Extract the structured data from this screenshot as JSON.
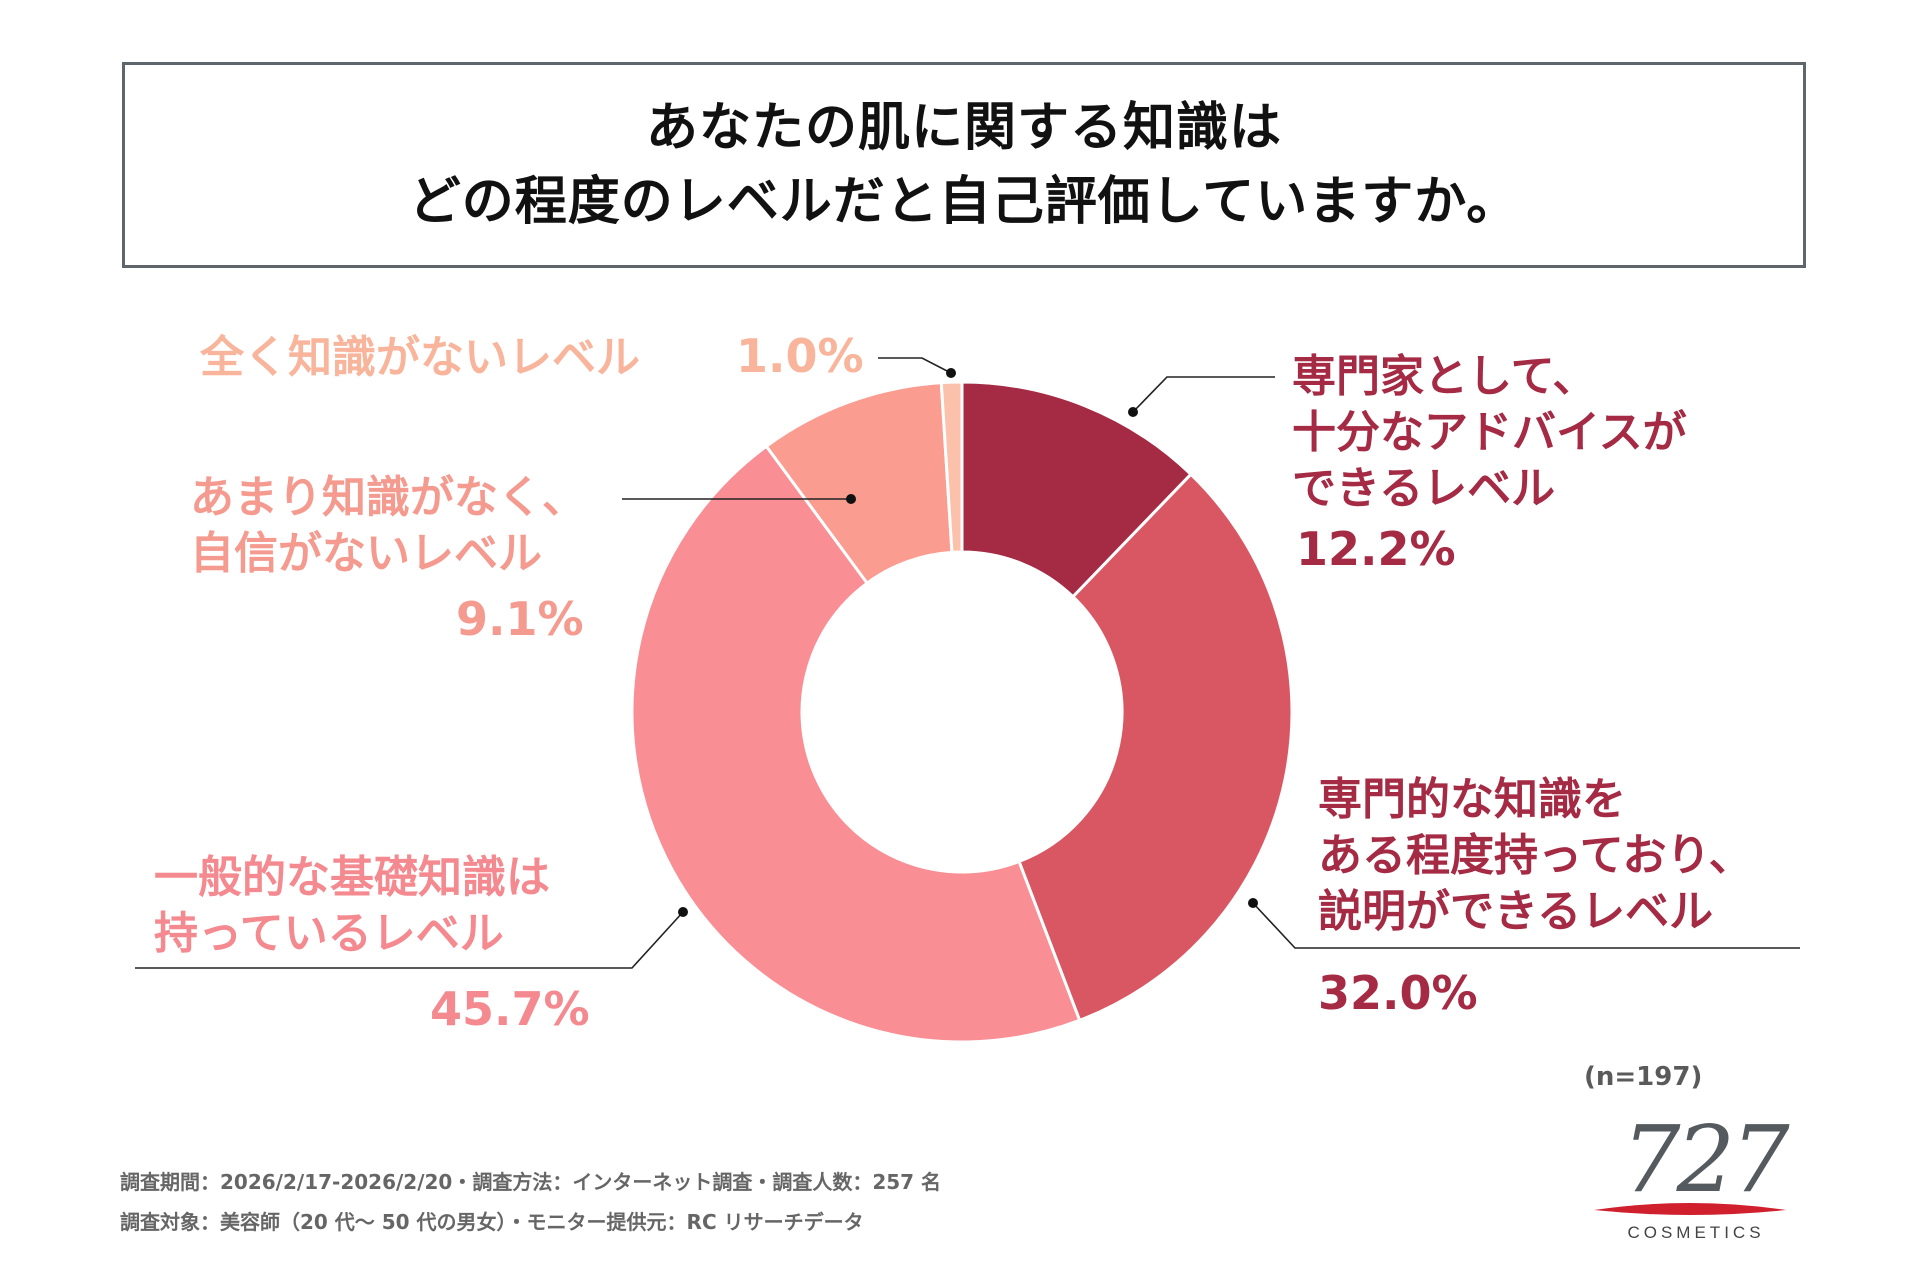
{
  "title": {
    "line1": "あなたの肌に関する知識は",
    "line2": "どの程度のレベルだと自己評価していますか。"
  },
  "chart_data": {
    "type": "pie",
    "donut": true,
    "title": "あなたの肌に関する知識は どの程度のレベルだと自己評価していますか。",
    "unit": "%",
    "slices": [
      {
        "id": "expert",
        "label_lines": [
          "専門家として、",
          "十分なアドバイスが",
          "できるレベル"
        ],
        "value": 12.2,
        "value_label": "12.2%",
        "color": "#A52A44"
      },
      {
        "id": "considerable",
        "label_lines": [
          "専門的な知識を",
          "ある程度持っており、",
          "説明ができるレベル"
        ],
        "value": 32.0,
        "value_label": "32.0%",
        "color": "#D95763"
      },
      {
        "id": "basic",
        "label_lines": [
          "一般的な基礎知識は",
          "持っているレベル"
        ],
        "value": 45.7,
        "value_label": "45.7%",
        "color": "#F98E94"
      },
      {
        "id": "little",
        "label_lines": [
          "あまり知識がなく、",
          "自信がないレベル"
        ],
        "value": 9.1,
        "value_label": "9.1%",
        "color": "#FB9C90"
      },
      {
        "id": "none",
        "label_lines": [
          "全く知識がないレベル"
        ],
        "value": 1.0,
        "value_label": "1.0%",
        "color": "#FCC1AA"
      }
    ],
    "label_colors": {
      "expert": "#A52A44",
      "considerable": "#A52A44",
      "basic": "#F48A8F",
      "little": "#F59A8F",
      "none": "#F8B59C"
    }
  },
  "sample": "(n=197)",
  "footer": {
    "line1": "調査期間：2026/2/17-2026/2/20・調査方法：インターネット調査・調査人数：257 名",
    "line2": "調査対象：美容師（20 代～ 50 代の男女）・モニター提供元：RC リサーチデータ"
  },
  "logo": {
    "number": "727",
    "text": "COSMETICS",
    "accent_color": "#D0202E"
  }
}
